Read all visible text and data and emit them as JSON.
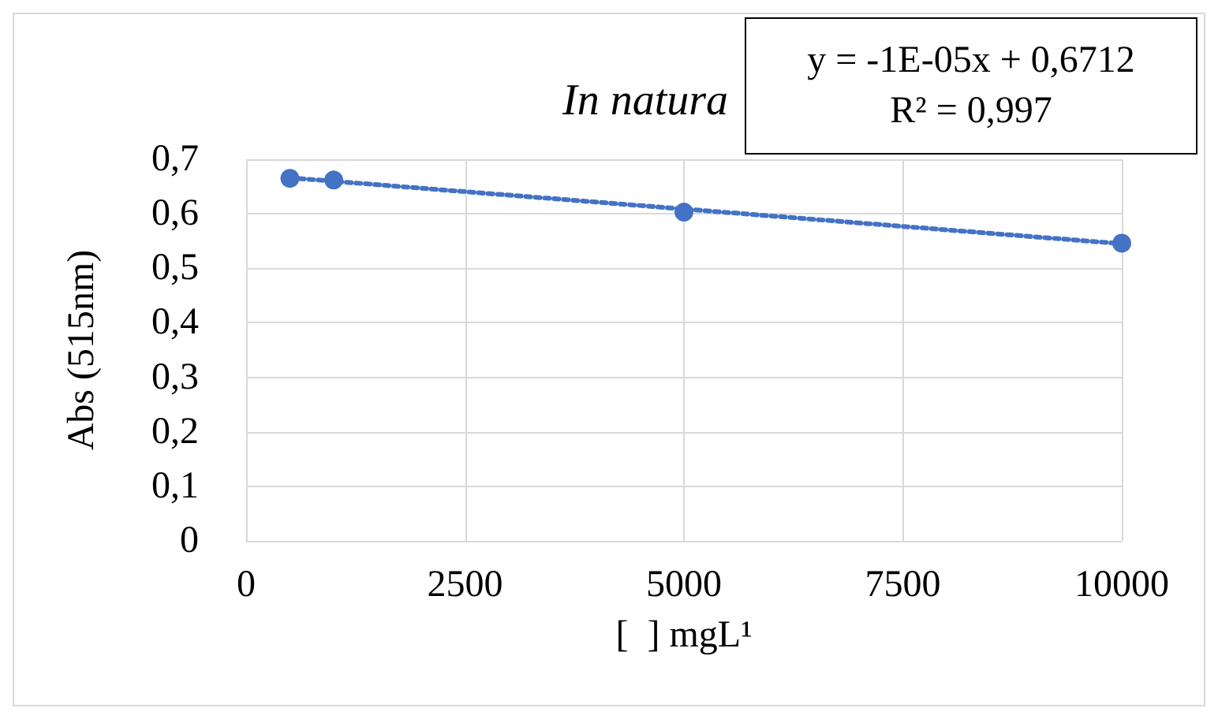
{
  "chart_data": {
    "type": "scatter",
    "title": "In natura",
    "xlabel": "[  ] mgL¹",
    "ylabel": "Abs (515nm)",
    "annotations": [
      "y = -1E-05x + 0,6712\nR² = 0,997"
    ],
    "series": [
      {
        "color": "#4472c4",
        "x": [
          500,
          1000,
          5000,
          10000
        ],
        "values": [
          0.665,
          0.662,
          0.603,
          0.546
        ]
      },
      {
        "type": "line",
        "color": "#4472c4",
        "x": [
          500,
          10000
        ],
        "values": [
          0.666,
          0.545
        ],
        "marker": "none",
        "line_style": "dotted"
      }
    ],
    "xlim": [
      0,
      10000
    ],
    "xticks": [
      0,
      2500,
      5000,
      7500,
      10000
    ],
    "ylim": [
      0,
      0.7
    ],
    "yticks": [
      0,
      {
        "value": 0.1,
        "label": "0,1"
      },
      {
        "value": 0.2,
        "label": "0,2"
      },
      {
        "value": 0.3,
        "label": "0,3"
      },
      {
        "value": 0.4,
        "label": "0,4"
      },
      {
        "value": 0.5,
        "label": "0,5"
      },
      {
        "value": 0.6,
        "label": "0,6"
      },
      {
        "value": 0.7,
        "label": "0,7"
      }
    ],
    "grid": true,
    "marker": "circle"
  }
}
